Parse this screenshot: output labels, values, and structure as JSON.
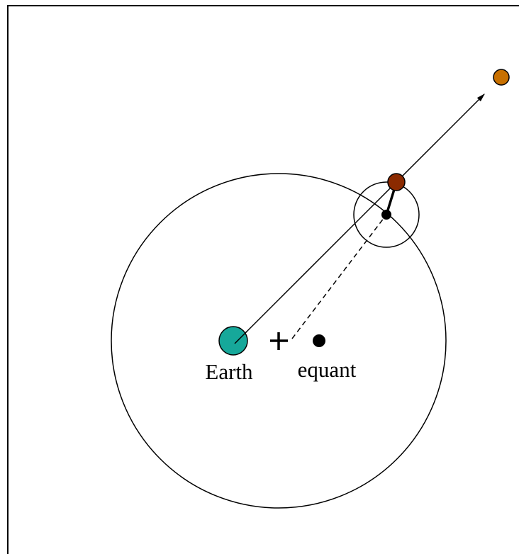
{
  "labels": {
    "earth": "Earth",
    "equant": "equant"
  }
}
